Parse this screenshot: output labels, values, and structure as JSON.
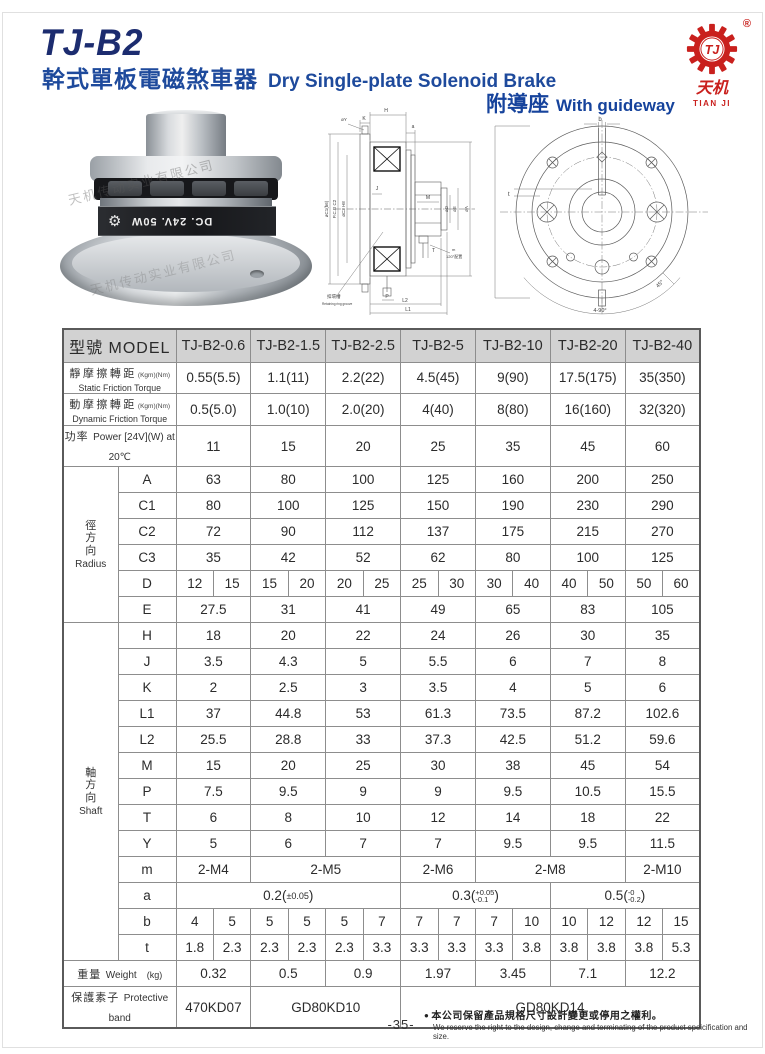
{
  "header": {
    "title": "TJ-B2",
    "subtitle_zh": "幹式單板電磁煞車器",
    "subtitle_en": "Dry Single-plate Solenoid Brake",
    "guideway_zh": "附導座",
    "guideway_en": "With guideway"
  },
  "logo": {
    "monogram": "TJ",
    "registered": "®",
    "name_zh": "天机",
    "name_en": "TIAN JI",
    "brand_red": "#c9201d"
  },
  "photo": {
    "band_text": "DC. 24V. 50W",
    "watermark": "天机传动实业有限公司"
  },
  "drawings": {
    "section_labels": {
      "h": "H",
      "k": "K",
      "a": "a",
      "oy": "øY",
      "oc1": "øC1(h6)",
      "pcd": "P.C.D C2",
      "oc3": "øC3 H8",
      "j": "J",
      "m_dim": "M",
      "od": "øD",
      "oe": "øE",
      "oa": "øA",
      "t_dim": "T",
      "p": "P",
      "l2": "L2",
      "l1": "L1",
      "m_thread": "m",
      "angle": "120°配置",
      "groove_zh": "扣環槽",
      "groove_en": "Retaining ring groove"
    },
    "front_labels": {
      "b": "b",
      "t": "t",
      "a45": "45°",
      "a490": "4-90°"
    }
  },
  "table": {
    "model_header": {
      "zh": "型號",
      "en": "MODEL"
    },
    "columns": [
      "TJ-B2-0.6",
      "TJ-B2-1.5",
      "TJ-B2-2.5",
      "TJ-B2-5",
      "TJ-B2-10",
      "TJ-B2-20",
      "TJ-B2-40"
    ],
    "groups": [
      {
        "id": "radius",
        "zh": "徑方向",
        "en": "Radius",
        "rows": [
          "A",
          "C1",
          "C2",
          "C3",
          "D",
          "E"
        ]
      },
      {
        "id": "shaft",
        "zh": "軸方向",
        "en": "Shaft",
        "rows": [
          "H",
          "J",
          "K",
          "L1",
          "L2",
          "M",
          "P",
          "T",
          "Y",
          "m",
          "a",
          "b",
          "t"
        ]
      }
    ],
    "rows": [
      {
        "id": "static",
        "label": {
          "two_line": true,
          "zh": "靜摩擦轉距",
          "unit": "(Kgm)(Nm)",
          "en": "Static Friction Torque"
        },
        "cells": [
          "0.55(5.5)",
          "1.1(11)",
          "2.2(22)",
          "4.5(45)",
          "9(90)",
          "17.5(175)",
          "35(350)"
        ]
      },
      {
        "id": "dynamic",
        "label": {
          "two_line": true,
          "zh": "動摩擦轉距",
          "unit": "(Kgm)(Nm)",
          "en": "Dynamic Friction Torque"
        },
        "cells": [
          "0.5(5.0)",
          "1.0(10)",
          "2.0(20)",
          "4(40)",
          "8(80)",
          "16(160)",
          "32(320)"
        ]
      },
      {
        "id": "power",
        "label": {
          "two_line": false,
          "zh": "功率",
          "en": "Power [24V](W) at 20℃",
          "unit": ""
        },
        "cells": [
          "11",
          "15",
          "20",
          "25",
          "35",
          "45",
          "60"
        ]
      },
      {
        "id": "A",
        "label": "A",
        "cells": [
          "63",
          "80",
          "100",
          "125",
          "160",
          "200",
          "250"
        ]
      },
      {
        "id": "C1",
        "label": "C1",
        "cells": [
          "80",
          "100",
          "125",
          "150",
          "190",
          "230",
          "290"
        ]
      },
      {
        "id": "C2",
        "label": "C2",
        "cells": [
          "72",
          "90",
          "112",
          "137",
          "175",
          "215",
          "270"
        ]
      },
      {
        "id": "C3",
        "label": "C3",
        "cells": [
          "35",
          "42",
          "52",
          "62",
          "80",
          "100",
          "125"
        ]
      },
      {
        "id": "D",
        "label": "D",
        "pairs": [
          [
            "12",
            "15"
          ],
          [
            "15",
            "20"
          ],
          [
            "20",
            "25"
          ],
          [
            "25",
            "30"
          ],
          [
            "30",
            "40"
          ],
          [
            "40",
            "50"
          ],
          [
            "50",
            "60"
          ]
        ]
      },
      {
        "id": "E",
        "label": "E",
        "cells": [
          "27.5",
          "31",
          "41",
          "49",
          "65",
          "83",
          "105"
        ]
      },
      {
        "id": "H",
        "label": "H",
        "cells": [
          "18",
          "20",
          "22",
          "24",
          "26",
          "30",
          "35"
        ]
      },
      {
        "id": "J",
        "label": "J",
        "cells": [
          "3.5",
          "4.3",
          "5",
          "5.5",
          "6",
          "7",
          "8"
        ]
      },
      {
        "id": "K",
        "label": "K",
        "cells": [
          "2",
          "2.5",
          "3",
          "3.5",
          "4",
          "5",
          "6"
        ]
      },
      {
        "id": "L1",
        "label": "L1",
        "cells": [
          "37",
          "44.8",
          "53",
          "61.3",
          "73.5",
          "87.2",
          "102.6"
        ]
      },
      {
        "id": "L2",
        "label": "L2",
        "cells": [
          "25.5",
          "28.8",
          "33",
          "37.3",
          "42.5",
          "51.2",
          "59.6"
        ]
      },
      {
        "id": "M",
        "label": "M",
        "cells": [
          "15",
          "20",
          "25",
          "30",
          "38",
          "45",
          "54"
        ]
      },
      {
        "id": "P",
        "label": "P",
        "cells": [
          "7.5",
          "9.5",
          "9",
          "9",
          "9.5",
          "10.5",
          "15.5"
        ]
      },
      {
        "id": "T",
        "label": "T",
        "cells": [
          "6",
          "8",
          "10",
          "12",
          "14",
          "18",
          "22"
        ]
      },
      {
        "id": "Y",
        "label": "Y",
        "cells": [
          "5",
          "6",
          "7",
          "7",
          "9.5",
          "9.5",
          "11.5"
        ]
      },
      {
        "id": "m",
        "label": "m",
        "spans": [
          {
            "v": "2-M4",
            "s": 1
          },
          {
            "v": "2-M5",
            "s": 2
          },
          {
            "v": "2-M6",
            "s": 1
          },
          {
            "v": "2-M8",
            "s": 2
          },
          {
            "v": "2-M10",
            "s": 1
          }
        ]
      },
      {
        "id": "a",
        "label": "a",
        "spans": [
          {
            "v": "0.2",
            "sup": "±0.05",
            "s": 3
          },
          {
            "v": "0.3",
            "sup": "+0.05",
            "sub": "-0.1",
            "s": 2
          },
          {
            "v": "0.5",
            "sup": "-0",
            "sub": "-0.2",
            "s": 2
          }
        ]
      },
      {
        "id": "b",
        "label": "b",
        "pairs": [
          [
            "4",
            "5"
          ],
          [
            "5",
            "5"
          ],
          [
            "5",
            "7"
          ],
          [
            "7",
            "7"
          ],
          [
            "7",
            "10"
          ],
          [
            "10",
            "12"
          ],
          [
            "12",
            "15"
          ]
        ]
      },
      {
        "id": "t",
        "label": "t",
        "pairs": [
          [
            "1.8",
            "2.3"
          ],
          [
            "2.3",
            "2.3"
          ],
          [
            "2.3",
            "3.3"
          ],
          [
            "3.3",
            "3.3"
          ],
          [
            "3.3",
            "3.8"
          ],
          [
            "3.8",
            "3.8"
          ],
          [
            "3.8",
            "5.3"
          ]
        ]
      },
      {
        "id": "weight",
        "label": {
          "two_line": false,
          "zh": "重量",
          "en": "Weight",
          "unit": "(kg)"
        },
        "cells": [
          "0.32",
          "0.5",
          "0.9",
          "1.97",
          "3.45",
          "7.1",
          "12.2"
        ]
      },
      {
        "id": "protective",
        "label": {
          "two_line": false,
          "zh": "保護素子",
          "en": "Protective band",
          "unit": ""
        },
        "spans": [
          {
            "v": "470KD07",
            "s": 1
          },
          {
            "v": "GD80KD10",
            "s": 2
          },
          {
            "v": "GD80KD14",
            "s": 4
          }
        ]
      }
    ]
  },
  "footer": {
    "page_number": "-35-",
    "bullet": "●",
    "note_zh": "本公司保留產品規格尺寸設計變更或停用之權利。",
    "note_en": "We reserve the right to the design, change and terminating of the product speicification and size."
  }
}
